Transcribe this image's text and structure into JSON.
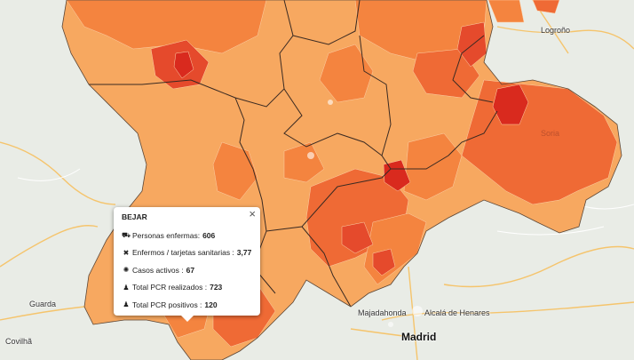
{
  "popup": {
    "title": "BEJAR",
    "close_glyph": "×",
    "rows": [
      {
        "icon": "bed-icon",
        "glyph": "⛟",
        "label": "Personas enfermas:",
        "value": "606"
      },
      {
        "icon": "health-card-icon",
        "glyph": "✖",
        "label": "Enfermos / tarjetas sanitarias :",
        "value": "3,77"
      },
      {
        "icon": "virus-icon",
        "glyph": "✺",
        "label": "Casos activos :",
        "value": "67"
      },
      {
        "icon": "person-icon",
        "glyph": "♟",
        "label": "Total PCR realizados :",
        "value": "723"
      },
      {
        "icon": "person-icon",
        "glyph": "♟",
        "label": "Total PCR positivos :",
        "value": "120"
      }
    ]
  },
  "places": {
    "logrono": "Logroño",
    "soria": "Soria",
    "guarda": "Guarda",
    "covilha": "Covilhã",
    "majadahonda": "Majadahonda",
    "alcala": "Alcalá de Henares",
    "madrid": "Madrid"
  },
  "colors": {
    "light_orange": "#f7a860",
    "orange": "#f4843f",
    "dark_orange": "#ef6a35",
    "red": "#e54a2c",
    "deep_red": "#d92a1e",
    "base_map": "#e9ece6"
  }
}
